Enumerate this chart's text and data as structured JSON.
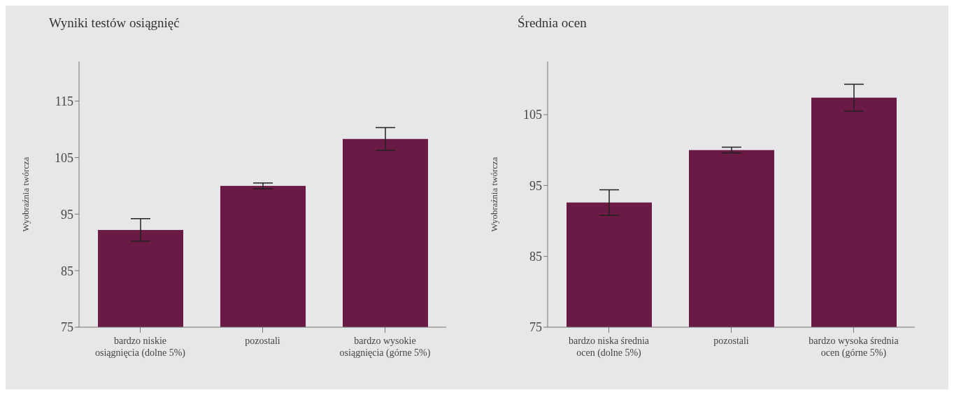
{
  "chart_data": [
    {
      "type": "bar",
      "title": "Wyniki testów osiągnięć",
      "ylabel": "Wyobraźnia twórcza",
      "categories": [
        "bardzo niskie osiągnięcia (dolne 5%)",
        "pozostali",
        "bardzo wysokie osiągnięcia (górne 5%)"
      ],
      "values": [
        92.2,
        100,
        108.3
      ],
      "errors": [
        2,
        0.5,
        2
      ],
      "color": "#6a1a45",
      "ylim": [
        75,
        122
      ],
      "yticks": [
        75,
        85,
        95,
        105,
        115
      ],
      "grid": false,
      "legend": false
    },
    {
      "type": "bar",
      "title": "Średnia ocen",
      "ylabel": "Wyobraźnia twórcza",
      "categories": [
        "bardzo niska średnia ocen (dolne 5%)",
        "pozostali",
        "bardzo wysoka średnia ocen (górne 5%)"
      ],
      "values": [
        92.6,
        100,
        107.4
      ],
      "errors": [
        1.8,
        0.4,
        1.9
      ],
      "color": "#6a1a45",
      "ylim": [
        75,
        112.5
      ],
      "yticks": [
        75,
        85,
        95,
        105
      ],
      "grid": false,
      "legend": false
    }
  ]
}
